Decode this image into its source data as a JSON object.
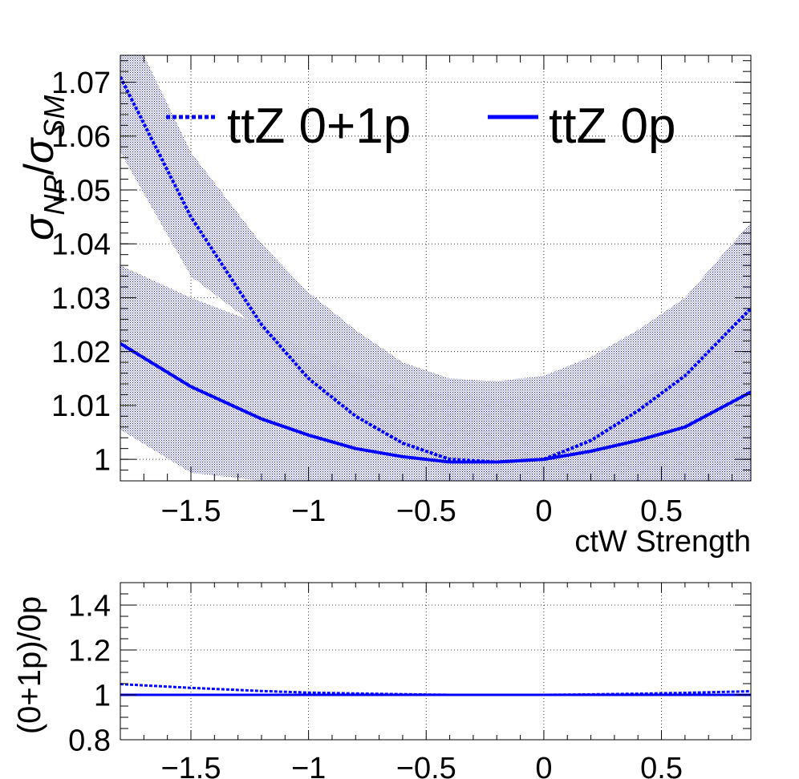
{
  "chart_data": [
    {
      "type": "line",
      "title": "",
      "xlabel": "ctW Strength",
      "ylabel": "σ_NP/σ_SM",
      "xlim": [
        -1.8,
        0.88
      ],
      "ylim": [
        0.996,
        1.075
      ],
      "grid": true,
      "legend_position": "top",
      "x_ticks": [
        "−1.5",
        "−1",
        "−0.5",
        "0",
        "0.5"
      ],
      "x_tick_values": [
        -1.5,
        -1,
        -0.5,
        0,
        0.5
      ],
      "y_ticks": [
        "1",
        "1.01",
        "1.02",
        "1.03",
        "1.04",
        "1.05",
        "1.06",
        "1.07"
      ],
      "y_tick_values": [
        1.0,
        1.01,
        1.02,
        1.03,
        1.04,
        1.05,
        1.06,
        1.07
      ],
      "x": [
        -1.8,
        -1.5,
        -1.2,
        -1.0,
        -0.8,
        -0.6,
        -0.4,
        -0.2,
        0.0,
        0.2,
        0.4,
        0.6,
        0.88
      ],
      "series": [
        {
          "name": "ttZ 0+1p",
          "style": "dashed",
          "values": [
            1.071,
            1.045,
            1.025,
            1.015,
            1.008,
            1.003,
            1.0,
            0.9995,
            1.0,
            1.0035,
            1.009,
            1.0155,
            1.028
          ],
          "band_upper": [
            1.084,
            1.057,
            1.04,
            1.031,
            1.024,
            1.018,
            1.015,
            1.0145,
            1.0155,
            1.019,
            1.024,
            1.03,
            1.044
          ],
          "band_lower": [
            1.057,
            1.034,
            1.024,
            1.014,
            1.008,
            1.0025,
            0.996,
            0.996,
            0.996,
            0.996,
            0.996,
            0.996,
            0.996
          ]
        },
        {
          "name": "ttZ 0p",
          "style": "solid",
          "values": [
            1.0215,
            1.0135,
            1.0075,
            1.0045,
            1.002,
            1.0005,
            0.9995,
            0.9995,
            1.0,
            1.0015,
            1.0035,
            1.006,
            1.0125
          ],
          "band_upper": [
            1.036,
            1.03,
            1.025,
            1.02,
            1.016,
            1.013,
            1.012,
            1.0115,
            1.012,
            1.013,
            1.015,
            1.018,
            1.026
          ],
          "band_lower": [
            1.0055,
            0.9975,
            0.996,
            0.996,
            0.996,
            0.996,
            0.996,
            0.996,
            0.996,
            0.996,
            0.996,
            0.996,
            0.996
          ]
        }
      ],
      "color": "#0000ff",
      "band_color": "#0000a0"
    },
    {
      "type": "line",
      "title": "",
      "xlabel": "",
      "ylabel": "(0+1p)/0p",
      "xlim": [
        -1.8,
        0.88
      ],
      "ylim": [
        0.8,
        1.5
      ],
      "grid": true,
      "x_ticks": [
        "−1.5",
        "−1",
        "−0.5",
        "0",
        "0.5"
      ],
      "x_tick_values": [
        -1.5,
        -1,
        -0.5,
        0,
        0.5
      ],
      "y_ticks": [
        "0.8",
        "1",
        "1.2",
        "1.4"
      ],
      "y_tick_values": [
        0.8,
        1.0,
        1.2,
        1.4
      ],
      "x": [
        -1.8,
        -1.5,
        -1.2,
        -1.0,
        -0.8,
        -0.6,
        -0.4,
        -0.2,
        0.0,
        0.2,
        0.4,
        0.6,
        0.88
      ],
      "series": [
        {
          "name": "ttZ 0+1p",
          "style": "dashed",
          "values": [
            1.048,
            1.031,
            1.017,
            1.01,
            1.006,
            1.003,
            1.0,
            1.0,
            1.0,
            1.002,
            1.005,
            1.009,
            1.016
          ]
        },
        {
          "name": "ttZ 0p",
          "style": "solid",
          "values": [
            1.0,
            1.0,
            1.0,
            1.0,
            1.0,
            1.0,
            1.0,
            1.0,
            1.0,
            1.0,
            1.0,
            1.0,
            1.0
          ]
        }
      ],
      "color": "#0000ff"
    }
  ]
}
